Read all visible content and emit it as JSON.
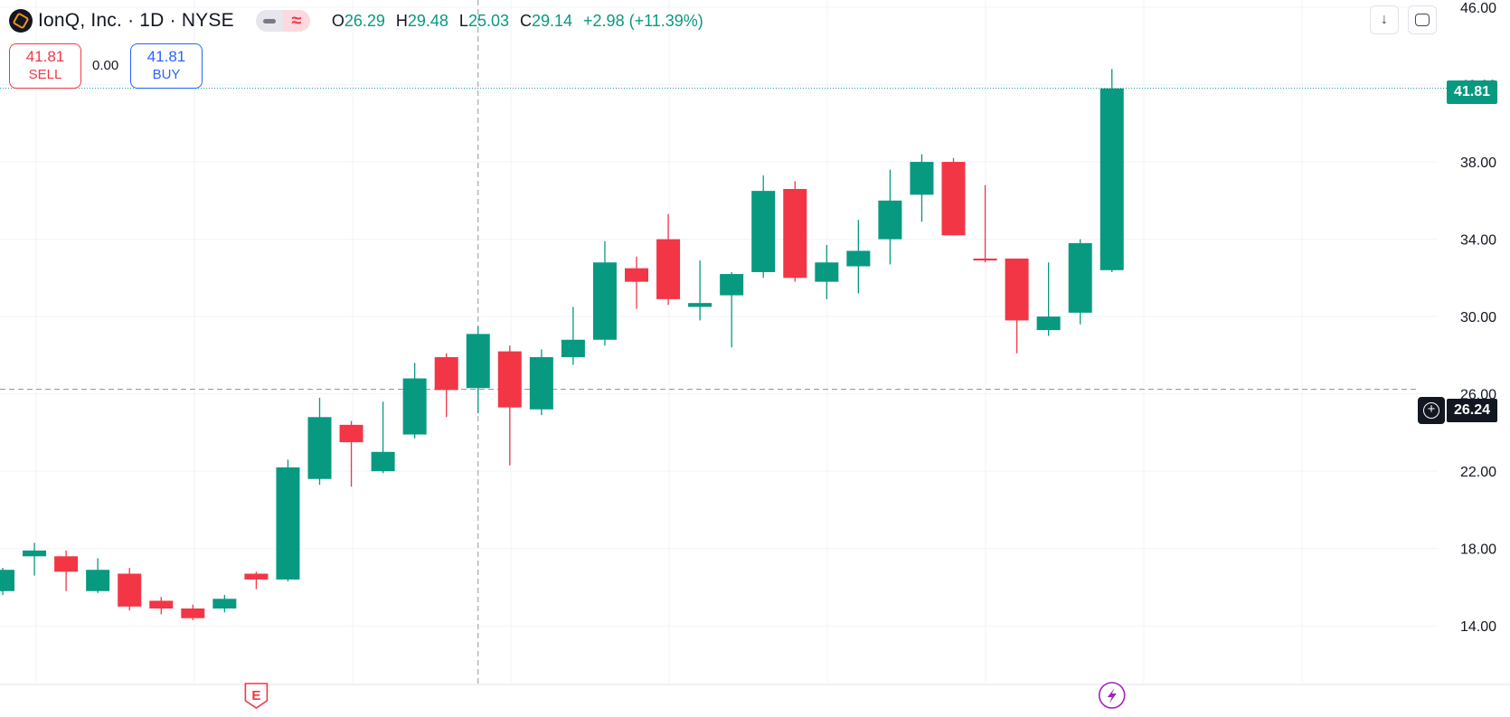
{
  "header": {
    "symbol_title": "IonQ, Inc. · 1D · NYSE",
    "ohlc": {
      "o_label": "O",
      "o_value": "26.29",
      "h_label": "H",
      "h_value": "29.48",
      "l_label": "L",
      "l_value": "25.03",
      "c_label": "C",
      "c_value": "29.14",
      "change": "+2.98 (+11.39%)"
    }
  },
  "trade": {
    "sell_price": "41.81",
    "sell_label": "SELL",
    "spread": "0.00",
    "buy_price": "41.81",
    "buy_label": "BUY"
  },
  "tags": {
    "last_price": "41.81",
    "crosshair_price": "26.24"
  },
  "colors": {
    "up": "#089981",
    "down": "#f23645",
    "grid": "#f0f3fa",
    "axis_text": "#131722",
    "marker_earnings": "#f23645",
    "marker_lightning": "#9c27b0"
  },
  "markers": {
    "earnings_letter": "E",
    "earnings_candle": 8,
    "lightning_candle": 35
  },
  "chart_data": {
    "type": "candlestick",
    "title": "IonQ, Inc. · 1D · NYSE",
    "ylim": [
      12,
      46
    ],
    "y_ticks": [
      "14.00",
      "18.00",
      "22.00",
      "26.00",
      "30.00",
      "34.00",
      "38.00",
      "42.00",
      "46.00"
    ],
    "last_price": 41.81,
    "crosshair": {
      "price": 26.24,
      "candle": 15
    },
    "grid": true,
    "candles": [
      {
        "o": 15.8,
        "h": 17.0,
        "l": 15.6,
        "c": 16.9
      },
      {
        "o": 17.6,
        "h": 18.3,
        "l": 16.6,
        "c": 17.9
      },
      {
        "o": 17.6,
        "h": 17.9,
        "l": 15.8,
        "c": 16.8
      },
      {
        "o": 15.8,
        "h": 17.5,
        "l": 15.7,
        "c": 16.9
      },
      {
        "o": 16.7,
        "h": 17.0,
        "l": 14.8,
        "c": 15.0
      },
      {
        "o": 15.3,
        "h": 15.5,
        "l": 14.6,
        "c": 14.9
      },
      {
        "o": 14.9,
        "h": 15.1,
        "l": 14.3,
        "c": 14.4
      },
      {
        "o": 14.9,
        "h": 15.6,
        "l": 14.7,
        "c": 15.4
      },
      {
        "o": 16.7,
        "h": 16.8,
        "l": 15.9,
        "c": 16.4
      },
      {
        "o": 16.4,
        "h": 22.6,
        "l": 16.3,
        "c": 22.2
      },
      {
        "o": 21.6,
        "h": 25.8,
        "l": 21.3,
        "c": 24.8
      },
      {
        "o": 24.4,
        "h": 24.6,
        "l": 21.2,
        "c": 23.5
      },
      {
        "o": 22.0,
        "h": 25.6,
        "l": 21.9,
        "c": 23.0
      },
      {
        "o": 23.9,
        "h": 27.6,
        "l": 23.7,
        "c": 26.8
      },
      {
        "o": 27.9,
        "h": 28.1,
        "l": 24.8,
        "c": 26.2
      },
      {
        "o": 26.3,
        "h": 29.5,
        "l": 25.0,
        "c": 29.1
      },
      {
        "o": 28.2,
        "h": 28.5,
        "l": 22.3,
        "c": 25.3
      },
      {
        "o": 25.2,
        "h": 28.3,
        "l": 24.9,
        "c": 27.9
      },
      {
        "o": 27.9,
        "h": 30.5,
        "l": 27.5,
        "c": 28.8
      },
      {
        "o": 28.8,
        "h": 33.9,
        "l": 28.5,
        "c": 32.8
      },
      {
        "o": 32.5,
        "h": 33.1,
        "l": 30.4,
        "c": 31.8
      },
      {
        "o": 34.0,
        "h": 35.3,
        "l": 30.6,
        "c": 30.9
      },
      {
        "o": 30.5,
        "h": 32.9,
        "l": 29.8,
        "c": 30.7
      },
      {
        "o": 31.1,
        "h": 32.3,
        "l": 28.4,
        "c": 32.2
      },
      {
        "o": 32.3,
        "h": 37.3,
        "l": 32.0,
        "c": 36.5
      },
      {
        "o": 36.6,
        "h": 37.0,
        "l": 31.8,
        "c": 32.0
      },
      {
        "o": 31.8,
        "h": 33.7,
        "l": 30.9,
        "c": 32.8
      },
      {
        "o": 32.6,
        "h": 35.0,
        "l": 31.2,
        "c": 33.4
      },
      {
        "o": 34.0,
        "h": 37.6,
        "l": 32.7,
        "c": 36.0
      },
      {
        "o": 36.3,
        "h": 38.4,
        "l": 34.9,
        "c": 38.0
      },
      {
        "o": 38.0,
        "h": 38.2,
        "l": 34.2,
        "c": 34.2
      },
      {
        "o": 33.0,
        "h": 36.8,
        "l": 32.8,
        "c": 32.9
      },
      {
        "o": 33.0,
        "h": 33.0,
        "l": 28.1,
        "c": 29.8
      },
      {
        "o": 29.3,
        "h": 32.8,
        "l": 29.0,
        "c": 30.0
      },
      {
        "o": 30.2,
        "h": 34.0,
        "l": 29.6,
        "c": 33.8
      },
      {
        "o": 32.4,
        "h": 42.8,
        "l": 32.3,
        "c": 41.8
      }
    ]
  }
}
